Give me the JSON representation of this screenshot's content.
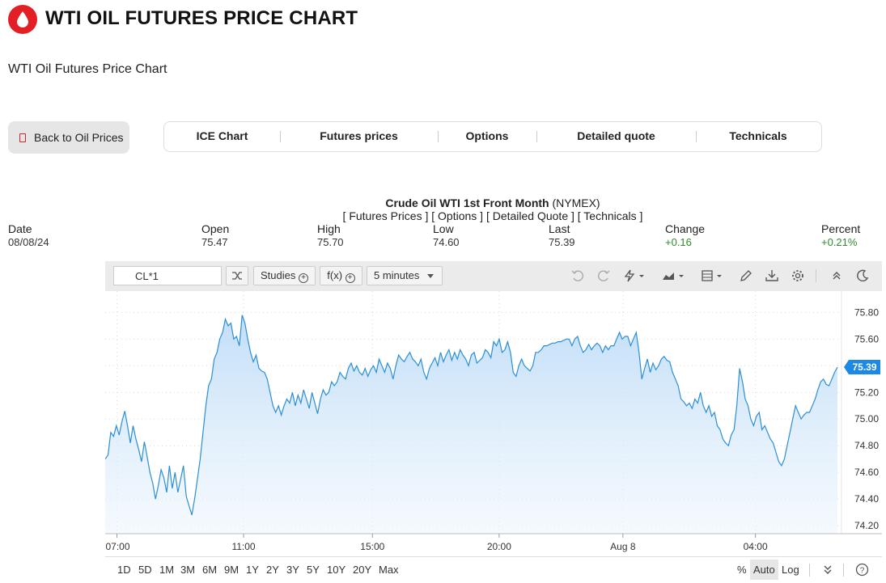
{
  "header": {
    "title": "WTI OIL FUTURES PRICE CHART",
    "subtitle": "WTI Oil Futures Price Chart",
    "brand_color": "#e31e24"
  },
  "back_button": {
    "label": "Back to Oil Prices"
  },
  "tabs": [
    {
      "label": "ICE Chart"
    },
    {
      "label": "Futures prices"
    },
    {
      "label": "Options"
    },
    {
      "label": "Detailed quote"
    },
    {
      "label": "Technicals"
    }
  ],
  "quote": {
    "title": "Crude Oil WTI 1st Front Month",
    "exchange": " (NYMEX)",
    "links": "[ Futures Prices ] [ Options ] [ Detailed Quote ] [ Technicals ]",
    "labels": {
      "date": "Date",
      "open": "Open",
      "high": "High",
      "low": "Low",
      "last": "Last",
      "change": "Change",
      "percent": "Percent"
    },
    "values": {
      "date": "08/08/24",
      "open": "75.47",
      "high": "75.70",
      "low": "74.60",
      "last": "75.39",
      "change": "+0.16",
      "percent": "+0.21%"
    }
  },
  "toolbar": {
    "symbol": "CL*1",
    "studies_label": "Studies",
    "fx_label": "f(x)",
    "interval_label": "5 minutes",
    "icons": [
      "search-icon",
      "compare-icon",
      "undo-icon",
      "redo-icon",
      "lightning-icon",
      "chart-type-icon",
      "layout-icon",
      "pencil-icon",
      "download-icon",
      "gear-icon",
      "collapse-icon",
      "moon-icon"
    ]
  },
  "chart_data": {
    "type": "area",
    "symbol": "CL*1",
    "last_value": "75.39",
    "y_ticks": [
      "75.80",
      "75.60",
      "75.40",
      "75.20",
      "75.00",
      "74.80",
      "74.60",
      "74.40",
      "74.20"
    ],
    "ylim": [
      74.14,
      75.96
    ],
    "x_ticks": [
      "07:00",
      "11:00",
      "15:00",
      "20:00",
      "Aug 8",
      "04:00"
    ],
    "grid": true,
    "line_color": "#2b8fd6",
    "label_color": "#1e88e5",
    "series": [
      {
        "values": [
          74.7,
          74.73,
          74.9,
          74.87,
          74.95,
          74.88,
          74.98,
          75.06,
          74.95,
          74.82,
          74.95,
          74.85,
          74.77,
          74.68,
          74.83,
          74.72,
          74.6,
          74.52,
          74.4,
          74.5,
          74.62,
          74.56,
          74.45,
          74.65,
          74.48,
          74.6,
          74.45,
          74.55,
          74.65,
          74.42,
          74.35,
          74.28,
          74.4,
          74.55,
          74.7,
          74.9,
          75.1,
          75.25,
          75.3,
          75.45,
          75.5,
          75.6,
          75.65,
          75.75,
          75.7,
          75.72,
          75.6,
          75.62,
          75.55,
          75.78,
          75.72,
          75.6,
          75.5,
          75.43,
          75.48,
          75.38,
          75.36,
          75.35,
          75.3,
          75.2,
          75.1,
          75.05,
          75.1,
          75.03,
          75.1,
          75.15,
          75.12,
          75.2,
          75.1,
          75.18,
          75.12,
          75.22,
          75.15,
          75.08,
          75.2,
          75.12,
          75.04,
          75.15,
          75.22,
          75.18,
          75.2,
          75.28,
          75.25,
          75.28,
          75.35,
          75.32,
          75.3,
          75.38,
          75.42,
          75.36,
          75.4,
          75.35,
          75.33,
          75.38,
          75.32,
          75.37,
          75.4,
          75.35,
          75.45,
          75.4,
          75.35,
          75.42,
          75.38,
          75.3,
          75.4,
          75.48,
          75.45,
          75.43,
          75.47,
          75.5,
          75.45,
          75.43,
          75.4,
          75.45,
          75.35,
          75.3,
          75.38,
          75.42,
          75.46,
          75.4,
          75.5,
          75.43,
          75.48,
          75.52,
          75.44,
          75.5,
          75.45,
          75.52,
          75.48,
          75.45,
          75.4,
          75.48,
          75.5,
          75.42,
          75.44,
          75.46,
          75.52,
          75.5,
          75.46,
          75.58,
          75.55,
          75.6,
          75.5,
          75.52,
          75.58,
          75.5,
          75.35,
          75.32,
          75.4,
          75.45,
          75.4,
          75.38,
          75.36,
          75.4,
          75.5,
          75.5,
          75.52,
          75.55,
          75.55,
          75.56,
          75.57,
          75.57,
          75.58,
          75.58,
          75.59,
          75.6,
          75.6,
          75.55,
          75.6,
          75.62,
          75.55,
          75.5,
          75.52,
          75.56,
          75.52,
          75.55,
          75.57,
          75.55,
          75.5,
          75.55,
          75.52,
          75.55,
          75.55,
          75.6,
          75.65,
          75.6,
          75.62,
          75.62,
          75.55,
          75.6,
          75.65,
          75.5,
          75.3,
          75.38,
          75.45,
          75.35,
          75.42,
          75.37,
          75.4,
          75.45,
          75.47,
          75.44,
          75.43,
          75.35,
          75.3,
          75.25,
          75.15,
          75.13,
          75.1,
          75.12,
          75.08,
          75.15,
          75.12,
          75.2,
          75.1,
          75.05,
          75.1,
          75.02,
          75.05,
          74.95,
          74.92,
          74.85,
          74.82,
          74.8,
          74.88,
          74.92,
          75.1,
          75.38,
          75.28,
          75.15,
          75.1,
          75.0,
          74.95,
          75.02,
          75.05,
          74.92,
          74.95,
          74.9,
          74.85,
          74.82,
          74.75,
          74.68,
          74.65,
          74.7,
          74.8,
          74.9,
          75.0,
          75.1,
          75.05,
          75.0,
          75.03,
          75.05,
          75.05,
          75.1,
          75.15,
          75.22,
          75.28,
          75.3,
          75.26,
          75.25,
          75.3,
          75.35,
          75.39
        ]
      }
    ]
  },
  "ranges": [
    "1D",
    "5D",
    "1M",
    "3M",
    "6M",
    "9M",
    "1Y",
    "2Y",
    "3Y",
    "5Y",
    "10Y",
    "20Y",
    "Max"
  ],
  "scale_options": {
    "percent": "%",
    "auto": "Auto",
    "log": "Log"
  }
}
